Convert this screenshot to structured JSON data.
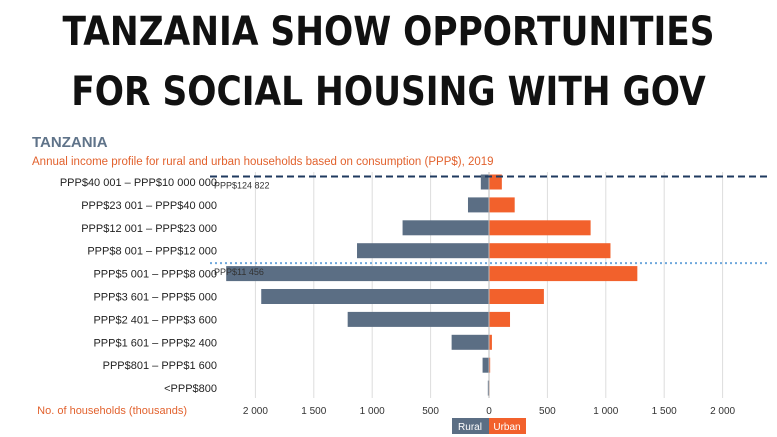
{
  "headline": {
    "line1": "TANZANIA SHOW OPPORTUNITIES",
    "line2": "FOR SOCIAL HOUSING WITH GOV"
  },
  "country": "TANZANIA",
  "subtitle": "Annual income profile for rural and urban households based on consumption (PPP$), 2019",
  "colors": {
    "rural": "#5b6e84",
    "urban": "#f2612c",
    "ref_upper": "#1f3a5f",
    "ref_lower": "#6fa8dc"
  },
  "chart_data": {
    "type": "bar",
    "orientation": "horizontal",
    "layout": "population-pyramid",
    "categories": [
      "PPP$40 001 – PPP$10 000 000",
      "PPP$23 001 – PPP$40 000",
      "PPP$12 001 – PPP$23 000",
      "PPP$8 001 – PPP$12 000",
      "PPP$5 001 – PPP$8 000",
      "PPP$3 601 – PPP$5 000",
      "PPP$2 401 – PPP$3 600",
      "PPP$1 601 – PPP$2 400",
      "PPP$801 – PPP$1 600",
      "<PPP$800"
    ],
    "series": [
      {
        "name": "Rural",
        "values": [
          70,
          180,
          740,
          1130,
          2250,
          1950,
          1210,
          320,
          55,
          10
        ]
      },
      {
        "name": "Urban",
        "values": [
          110,
          220,
          870,
          1040,
          1270,
          470,
          180,
          25,
          10,
          5
        ]
      }
    ],
    "xlabel": "No. of households (thousands)",
    "xlim": [
      -2300,
      2300
    ],
    "ticks": [
      {
        "value": -2000,
        "label": "2 000"
      },
      {
        "value": -1500,
        "label": "1 500"
      },
      {
        "value": -1000,
        "label": "1 000"
      },
      {
        "value": -500,
        "label": "500"
      },
      {
        "value": 0,
        "label": "0"
      },
      {
        "value": 500,
        "label": "500"
      },
      {
        "value": 1000,
        "label": "1 000"
      },
      {
        "value": 1500,
        "label": "1 500"
      },
      {
        "value": 2000,
        "label": "2 000"
      }
    ],
    "reference_lines": [
      {
        "label": "PPP$124 822",
        "between": [
          0,
          1
        ],
        "style": "dashed"
      },
      {
        "label": "PPP$11 456",
        "between": [
          3,
          4
        ],
        "style": "dotted"
      }
    ],
    "legend": [
      "Rural",
      "Urban"
    ],
    "grid": true
  }
}
